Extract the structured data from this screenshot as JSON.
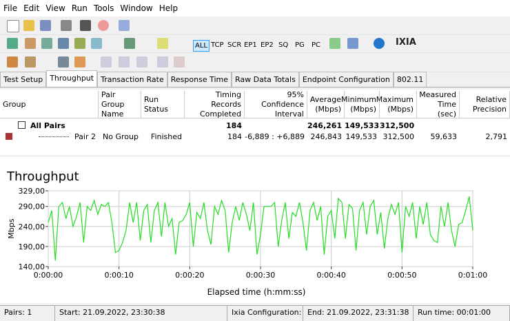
{
  "menu": [
    "File",
    "Edit",
    "View",
    "Run",
    "Tools",
    "Window",
    "Help"
  ],
  "toolbar_buttons": [
    "ALL",
    "TCP",
    "SCR",
    "EP1",
    "EP2",
    "SQ",
    "PG",
    "PC"
  ],
  "logo": "IXIA",
  "tabs": [
    "Test Setup",
    "Throughput",
    "Transaction Rate",
    "Response Time",
    "Raw Data Totals",
    "Endpoint Configuration",
    "802.11"
  ],
  "active_tab": 1,
  "table": {
    "columns": [
      {
        "key": "group",
        "label": "Group"
      },
      {
        "key": "pair_group_name",
        "label": "Pair Group Name"
      },
      {
        "key": "run_status",
        "label": "Run Status"
      },
      {
        "key": "timing_records",
        "label": "Timing Records Completed"
      },
      {
        "key": "confidence",
        "label": "95% Confidence Interval"
      },
      {
        "key": "average",
        "label": "Average (Mbps)"
      },
      {
        "key": "minimum",
        "label": "Minimum (Mbps)"
      },
      {
        "key": "maximum",
        "label": "Maximum (Mbps)"
      },
      {
        "key": "measured_time",
        "label": "Measured Time (sec)"
      },
      {
        "key": "relative_precision",
        "label": "Relative Precision"
      }
    ],
    "rows": [
      {
        "group": "All Pairs",
        "timing_records": "184",
        "average": "246,261",
        "minimum": "149,533",
        "maximum": "312,500"
      },
      {
        "group": "Pair 2",
        "pair_group_name": "No Group",
        "run_status": "Finished",
        "timing_records": "184",
        "confidence": "-6,889 : +6,889",
        "average": "246,843",
        "minimum": "149,533",
        "maximum": "312,500",
        "measured_time": "59,633",
        "relative_precision": "2,791"
      }
    ]
  },
  "chart_data": {
    "type": "line",
    "title": "Throughput",
    "x_label": "Elapsed time (h:mm:ss)",
    "y_label": "Mbps",
    "xlim": [
      0,
      60
    ],
    "xticks": [
      {
        "value": 0,
        "label": "0:00:00"
      },
      {
        "value": 10,
        "label": "0:00:10"
      },
      {
        "value": 20,
        "label": "0:00:20"
      },
      {
        "value": 30,
        "label": "0:00:30"
      },
      {
        "value": 40,
        "label": "0:00:40"
      },
      {
        "value": 50,
        "label": "0:00:50"
      },
      {
        "value": 60,
        "label": "0:01:00"
      }
    ],
    "ylim": [
      140,
      329
    ],
    "yticks": [
      {
        "value": 140,
        "label": "140,00"
      },
      {
        "value": 190,
        "label": "190,00"
      },
      {
        "value": 240,
        "label": "240,00"
      },
      {
        "value": 290,
        "label": "290,00"
      },
      {
        "value": 329,
        "label": "329,00"
      }
    ],
    "grid": true,
    "x": [
      0,
      0.5,
      1,
      1.5,
      2,
      2.5,
      3,
      3.5,
      4,
      4.5,
      5,
      5.5,
      6,
      6.5,
      7,
      7.5,
      8,
      8.5,
      9,
      9.5,
      10,
      10.5,
      11,
      11.5,
      12,
      12.5,
      13,
      13.5,
      14,
      14.5,
      15,
      15.5,
      16,
      16.5,
      17,
      17.5,
      18,
      18.5,
      19,
      19.5,
      20,
      20.5,
      21,
      21.5,
      22,
      22.5,
      23,
      23.5,
      24,
      24.5,
      25,
      25.5,
      26,
      26.5,
      27,
      27.5,
      28,
      28.5,
      29,
      29.5,
      30,
      30.5,
      31,
      31.5,
      32,
      32.5,
      33,
      33.5,
      34,
      34.5,
      35,
      35.5,
      36,
      36.5,
      37,
      37.5,
      38,
      38.5,
      39,
      39.5,
      40,
      40.5,
      41,
      41.5,
      42,
      42.5,
      43,
      43.5,
      44,
      44.5,
      45,
      45.5,
      46,
      46.5,
      47,
      47.5,
      48,
      48.5,
      49,
      49.5,
      50,
      50.5,
      51,
      51.5,
      52,
      52.5,
      53,
      53.5,
      54,
      54.5,
      55,
      55.5,
      56,
      56.5,
      57,
      57.5,
      58,
      58.5,
      59,
      59.5,
      60
    ],
    "series": [
      {
        "name": "Pair 2",
        "color": "#22dd22",
        "values": [
          250,
          280,
          155,
          290,
          300,
          260,
          290,
          240,
          265,
          300,
          200,
          290,
          280,
          305,
          270,
          295,
          290,
          300,
          250,
          175,
          180,
          200,
          230,
          300,
          250,
          300,
          205,
          280,
          295,
          200,
          280,
          300,
          215,
          300,
          240,
          260,
          170,
          250,
          255,
          270,
          300,
          190,
          275,
          260,
          300,
          230,
          195,
          290,
          270,
          305,
          280,
          175,
          250,
          290,
          255,
          300,
          270,
          230,
          300,
          170,
          220,
          290,
          290,
          290,
          300,
          190,
          255,
          300,
          210,
          275,
          265,
          300,
          250,
          180,
          280,
          300,
          255,
          290,
          170,
          265,
          280,
          210,
          310,
          300,
          210,
          295,
          285,
          180,
          280,
          300,
          220,
          290,
          305,
          220,
          275,
          185,
          260,
          295,
          270,
          300,
          175,
          290,
          265,
          300,
          210,
          290,
          245,
          300,
          220,
          205,
          200,
          290,
          240,
          300,
          230,
          190,
          245,
          250,
          280,
          315,
          230
        ]
      }
    ]
  },
  "status": [
    "Pairs: 1",
    "Start: 21.09.2022, 23:30:38",
    "Ixia Configuration:",
    "End: 21.09.2022, 23:31:38",
    "Run time: 00:01:00"
  ]
}
